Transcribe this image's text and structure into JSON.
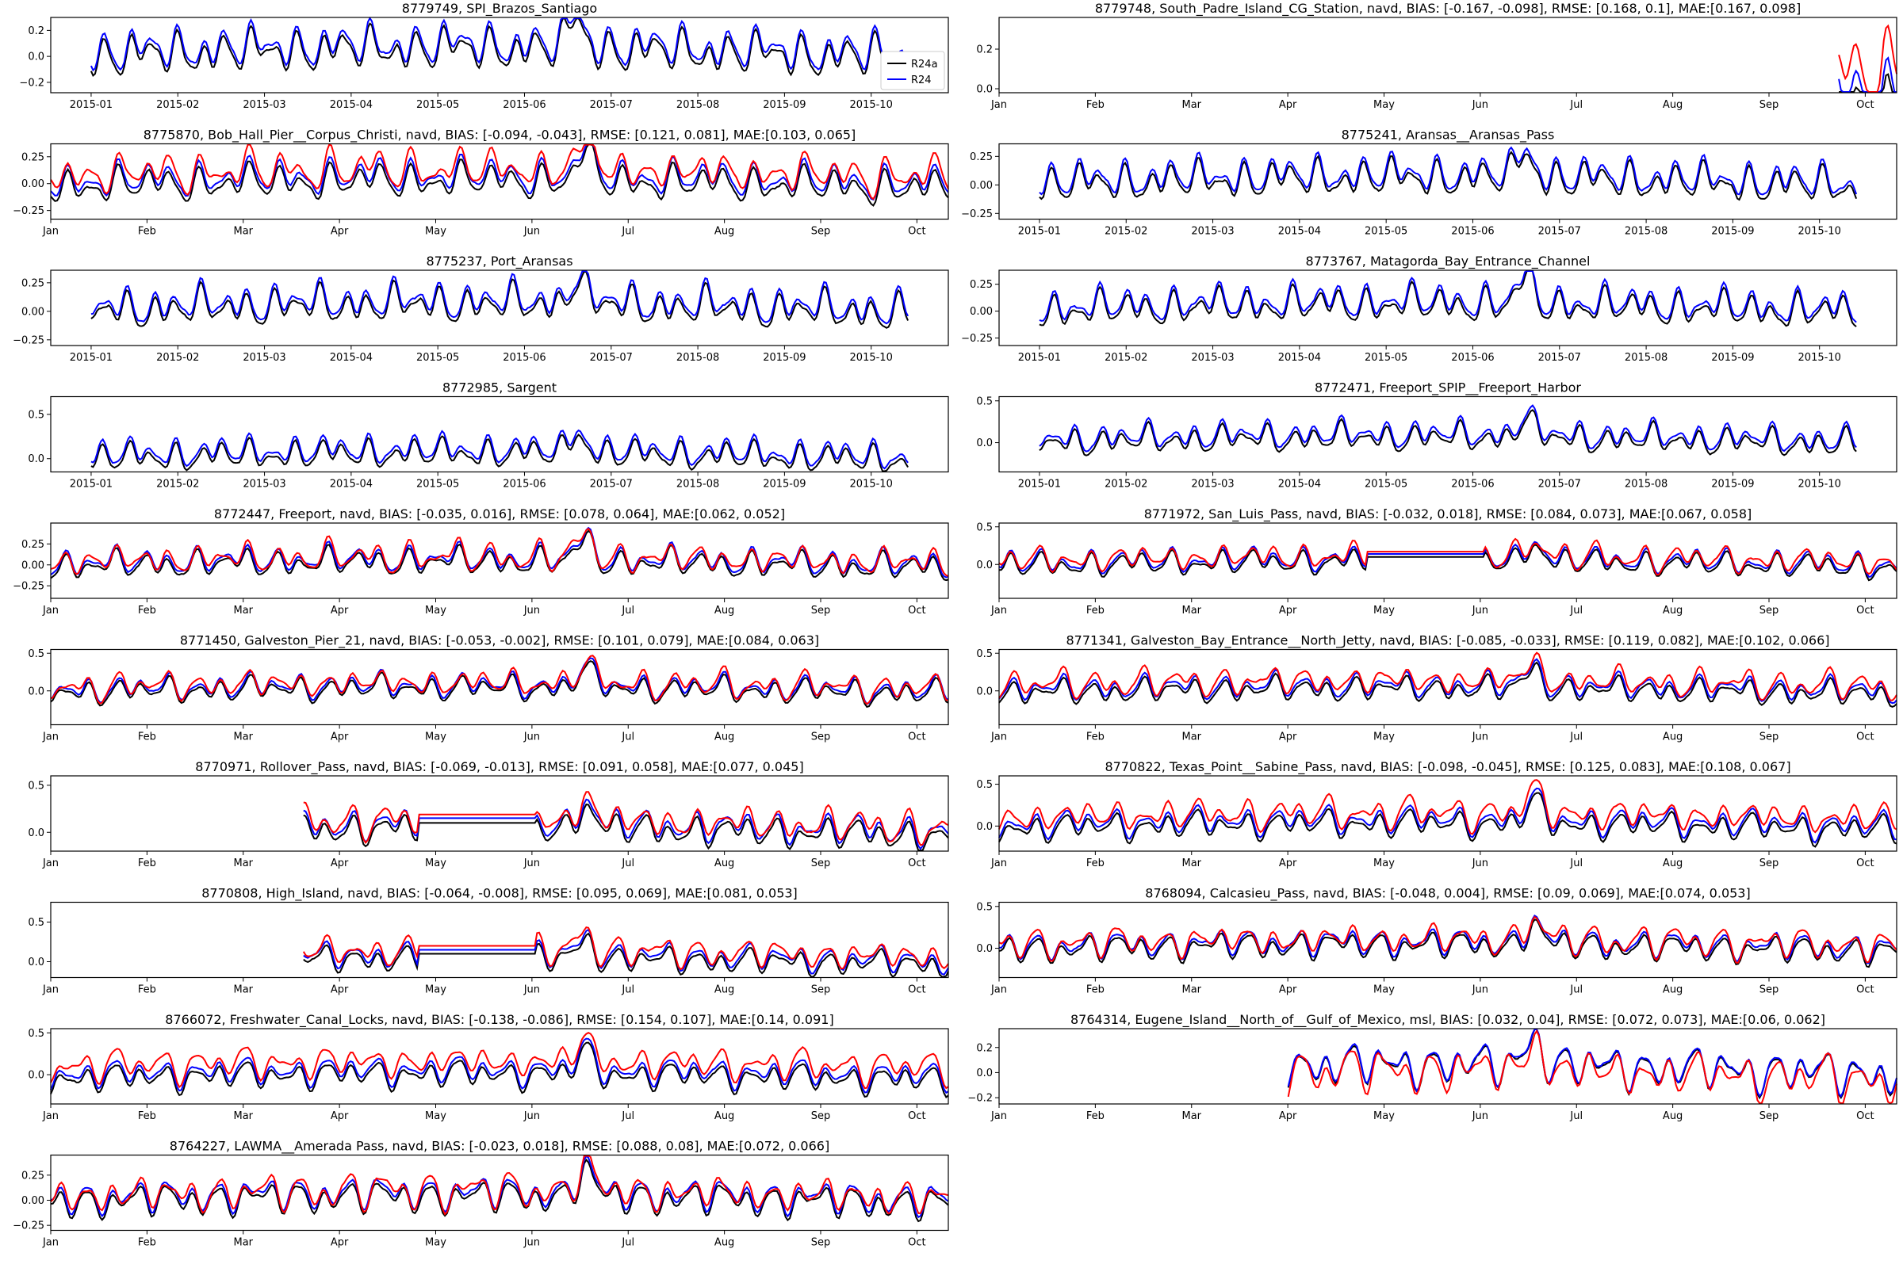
{
  "chart_data": [
    {
      "type": "line",
      "title": "8779749, SPI_Brazos_Santiago",
      "axis": "dates",
      "ylim": [
        -0.28,
        0.3
      ],
      "yticks": [
        0.2,
        0.0,
        -0.2
      ],
      "ytick_labels": [
        "0.2",
        "0.0",
        "−0.2"
      ],
      "xtick_labels": [
        "2015-01",
        "2015-02",
        "2015-03",
        "2015-04",
        "2015-05",
        "2015-06",
        "2015-07",
        "2015-08",
        "2015-09",
        "2015-10"
      ],
      "legend": "lower-right",
      "series": [
        {
          "name": "R24a",
          "color": "#000000",
          "offset": 0.0
        },
        {
          "name": "R24",
          "color": "#0000ff",
          "offset": 0.04
        }
      ]
    },
    {
      "type": "line",
      "title": "8779748, South_Padre_Island_CG_Station, navd, BIAS: [-0.167, -0.098], RMSE: [0.168, 0.1], MAE:[0.167, 0.098]",
      "axis": "months",
      "ylim": [
        -0.02,
        0.36
      ],
      "yticks": [
        0.2,
        0.0
      ],
      "ytick_labels": [
        "0.2",
        "0.0"
      ],
      "xtick_labels": [
        "Jan",
        "Feb",
        "Mar",
        "Apr",
        "May",
        "Jun",
        "Jul",
        "Aug",
        "Sep",
        "Oct"
      ],
      "data_start": 0.935,
      "series": [
        {
          "color": "#000000",
          "offset": -0.08
        },
        {
          "color": "#0000ff",
          "offset": 0.0
        },
        {
          "color": "#ff0000",
          "offset": 0.12
        }
      ]
    },
    {
      "type": "line",
      "title": "8775870, Bob_Hall_Pier__Corpus_Christi, navd, BIAS: [-0.094, -0.043], RMSE: [0.121, 0.081], MAE:[0.103, 0.065]",
      "axis": "months",
      "ylim": [
        -0.33,
        0.37
      ],
      "yticks": [
        0.25,
        0.0,
        -0.25
      ],
      "ytick_labels": [
        "0.25",
        "0.00",
        "−0.25"
      ],
      "xtick_labels": [
        "Jan",
        "Feb",
        "Mar",
        "Apr",
        "May",
        "Jun",
        "Jul",
        "Aug",
        "Sep",
        "Oct"
      ],
      "series": [
        {
          "color": "#000000",
          "offset": -0.03
        },
        {
          "color": "#0000ff",
          "offset": 0.02
        },
        {
          "color": "#ff0000",
          "offset": 0.08
        }
      ]
    },
    {
      "type": "line",
      "title": "8775241, Aransas__Aransas_Pass",
      "axis": "dates",
      "ylim": [
        -0.3,
        0.36
      ],
      "yticks": [
        0.25,
        0.0,
        -0.25
      ],
      "ytick_labels": [
        "0.25",
        "0.00",
        "−0.25"
      ],
      "xtick_labels": [
        "2015-01",
        "2015-02",
        "2015-03",
        "2015-04",
        "2015-05",
        "2015-06",
        "2015-07",
        "2015-08",
        "2015-09",
        "2015-10"
      ],
      "series": [
        {
          "color": "#000000",
          "offset": 0.0
        },
        {
          "color": "#0000ff",
          "offset": 0.04
        }
      ]
    },
    {
      "type": "line",
      "title": "8775237, Port_Aransas",
      "axis": "dates",
      "ylim": [
        -0.3,
        0.36
      ],
      "yticks": [
        0.25,
        0.0,
        -0.25
      ],
      "ytick_labels": [
        "0.25",
        "0.00",
        "−0.25"
      ],
      "xtick_labels": [
        "2015-01",
        "2015-02",
        "2015-03",
        "2015-04",
        "2015-05",
        "2015-06",
        "2015-07",
        "2015-08",
        "2015-09",
        "2015-10"
      ],
      "series": [
        {
          "color": "#000000",
          "offset": 0.0
        },
        {
          "color": "#0000ff",
          "offset": 0.04
        }
      ]
    },
    {
      "type": "line",
      "title": "8773767, Matagorda_Bay_Entrance_Channel",
      "axis": "dates",
      "ylim": [
        -0.32,
        0.38
      ],
      "yticks": [
        0.25,
        0.0,
        -0.25
      ],
      "ytick_labels": [
        "0.25",
        "0.00",
        "−0.25"
      ],
      "xtick_labels": [
        "2015-01",
        "2015-02",
        "2015-03",
        "2015-04",
        "2015-05",
        "2015-06",
        "2015-07",
        "2015-08",
        "2015-09",
        "2015-10"
      ],
      "series": [
        {
          "color": "#000000",
          "offset": 0.0
        },
        {
          "color": "#0000ff",
          "offset": 0.04
        }
      ]
    },
    {
      "type": "line",
      "title": "8772985, Sargent",
      "axis": "dates",
      "ylim": [
        -0.15,
        0.7
      ],
      "yticks": [
        0.5,
        0.0
      ],
      "ytick_labels": [
        "0.5",
        "0.0"
      ],
      "xtick_labels": [
        "2015-01",
        "2015-02",
        "2015-03",
        "2015-04",
        "2015-05",
        "2015-06",
        "2015-07",
        "2015-08",
        "2015-09",
        "2015-10"
      ],
      "series": [
        {
          "color": "#000000",
          "offset": 0.0
        },
        {
          "color": "#0000ff",
          "offset": 0.05
        }
      ]
    },
    {
      "type": "line",
      "title": "8772471, Freeport_SPIP__Freeport_Harbor",
      "axis": "dates",
      "ylim": [
        -0.35,
        0.55
      ],
      "yticks": [
        0.5,
        0.0
      ],
      "ytick_labels": [
        "0.5",
        "0.0"
      ],
      "xtick_labels": [
        "2015-01",
        "2015-02",
        "2015-03",
        "2015-04",
        "2015-05",
        "2015-06",
        "2015-07",
        "2015-08",
        "2015-09",
        "2015-10"
      ],
      "series": [
        {
          "color": "#000000",
          "offset": 0.0
        },
        {
          "color": "#0000ff",
          "offset": 0.05
        }
      ]
    },
    {
      "type": "line",
      "title": "8772447, Freeport, navd, BIAS: [-0.035, 0.016], RMSE: [0.078, 0.064], MAE:[0.062, 0.052]",
      "axis": "months",
      "ylim": [
        -0.4,
        0.5
      ],
      "yticks": [
        0.25,
        0.0,
        -0.25
      ],
      "ytick_labels": [
        "0.25",
        "0.00",
        "−0.25"
      ],
      "xtick_labels": [
        "Jan",
        "Feb",
        "Mar",
        "Apr",
        "May",
        "Jun",
        "Jul",
        "Aug",
        "Sep",
        "Oct"
      ],
      "series": [
        {
          "color": "#000000",
          "offset": -0.02
        },
        {
          "color": "#0000ff",
          "offset": 0.02
        },
        {
          "color": "#ff0000",
          "offset": 0.04
        }
      ]
    },
    {
      "type": "line",
      "title": "8771972, San_Luis_Pass, navd, BIAS: [-0.032, 0.018], RMSE: [0.084, 0.073], MAE:[0.067, 0.058]",
      "axis": "months",
      "ylim": [
        -0.45,
        0.55
      ],
      "yticks": [
        0.5,
        0.0
      ],
      "ytick_labels": [
        "0.5",
        "0.0"
      ],
      "xtick_labels": [
        "Jan",
        "Feb",
        "Mar",
        "Apr",
        "May",
        "Jun",
        "Jul",
        "Aug",
        "Sep",
        "Oct"
      ],
      "gap": [
        0.41,
        0.54
      ],
      "series": [
        {
          "color": "#000000",
          "offset": -0.02
        },
        {
          "color": "#0000ff",
          "offset": 0.02
        },
        {
          "color": "#ff0000",
          "offset": 0.05
        }
      ]
    },
    {
      "type": "line",
      "title": "8771450, Galveston_Pier_21, navd, BIAS: [-0.053, -0.002], RMSE: [0.101, 0.079], MAE:[0.084, 0.063]",
      "axis": "months",
      "ylim": [
        -0.45,
        0.55
      ],
      "yticks": [
        0.5,
        0.0
      ],
      "ytick_labels": [
        "0.5",
        "0.0"
      ],
      "xtick_labels": [
        "Jan",
        "Feb",
        "Mar",
        "Apr",
        "May",
        "Jun",
        "Jul",
        "Aug",
        "Sep",
        "Oct"
      ],
      "series": [
        {
          "color": "#000000",
          "offset": -0.02
        },
        {
          "color": "#0000ff",
          "offset": 0.02
        },
        {
          "color": "#ff0000",
          "offset": 0.05
        }
      ]
    },
    {
      "type": "line",
      "title": "8771341, Galveston_Bay_Entrance__North_Jetty, navd, BIAS: [-0.085, -0.033], RMSE: [0.119, 0.082], MAE:[0.102, 0.066]",
      "axis": "months",
      "ylim": [
        -0.45,
        0.55
      ],
      "yticks": [
        0.5,
        0.0
      ],
      "ytick_labels": [
        "0.5",
        "0.0"
      ],
      "xtick_labels": [
        "Jan",
        "Feb",
        "Mar",
        "Apr",
        "May",
        "Jun",
        "Jul",
        "Aug",
        "Sep",
        "Oct"
      ],
      "series": [
        {
          "color": "#000000",
          "offset": -0.03
        },
        {
          "color": "#0000ff",
          "offset": 0.02
        },
        {
          "color": "#ff0000",
          "offset": 0.08
        }
      ]
    },
    {
      "type": "line",
      "title": "8770971, Rollover_Pass, navd, BIAS: [-0.069, -0.013], RMSE: [0.091, 0.058], MAE:[0.077, 0.045]",
      "axis": "months",
      "ylim": [
        -0.2,
        0.6
      ],
      "yticks": [
        0.5,
        0.0
      ],
      "ytick_labels": [
        "0.5",
        "0.0"
      ],
      "xtick_labels": [
        "Jan",
        "Feb",
        "Mar",
        "Apr",
        "May",
        "Jun",
        "Jul",
        "Aug",
        "Sep",
        "Oct"
      ],
      "data_start": 0.28,
      "gap": [
        0.41,
        0.54
      ],
      "series": [
        {
          "color": "#000000",
          "offset": -0.02
        },
        {
          "color": "#0000ff",
          "offset": 0.03
        },
        {
          "color": "#ff0000",
          "offset": 0.07
        }
      ]
    },
    {
      "type": "line",
      "title": "8770822, Texas_Point__Sabine_Pass, navd, BIAS: [-0.098, -0.045], RMSE: [0.125, 0.083], MAE:[0.108, 0.067]",
      "axis": "months",
      "ylim": [
        -0.3,
        0.6
      ],
      "yticks": [
        0.5,
        0.0
      ],
      "ytick_labels": [
        "0.5",
        "0.0"
      ],
      "xtick_labels": [
        "Jan",
        "Feb",
        "Mar",
        "Apr",
        "May",
        "Jun",
        "Jul",
        "Aug",
        "Sep",
        "Oct"
      ],
      "series": [
        {
          "color": "#000000",
          "offset": -0.03
        },
        {
          "color": "#0000ff",
          "offset": 0.02
        },
        {
          "color": "#ff0000",
          "offset": 0.1
        }
      ]
    },
    {
      "type": "line",
      "title": "8770808, High_Island, navd, BIAS: [-0.064, -0.008], RMSE: [0.095, 0.069], MAE:[0.081, 0.053]",
      "axis": "months",
      "ylim": [
        -0.2,
        0.75
      ],
      "yticks": [
        0.5,
        0.0
      ],
      "ytick_labels": [
        "0.5",
        "0.0"
      ],
      "xtick_labels": [
        "Jan",
        "Feb",
        "Mar",
        "Apr",
        "May",
        "Jun",
        "Jul",
        "Aug",
        "Sep",
        "Oct"
      ],
      "data_start": 0.28,
      "gap": [
        0.41,
        0.54
      ],
      "series": [
        {
          "color": "#000000",
          "offset": -0.02
        },
        {
          "color": "#0000ff",
          "offset": 0.03
        },
        {
          "color": "#ff0000",
          "offset": 0.08
        }
      ]
    },
    {
      "type": "line",
      "title": "8768094, Calcasieu_Pass, navd, BIAS: [-0.048, 0.004], RMSE: [0.09, 0.069], MAE:[0.074, 0.053]",
      "axis": "months",
      "ylim": [
        -0.35,
        0.55
      ],
      "yticks": [
        0.5,
        0.0
      ],
      "ytick_labels": [
        "0.5",
        "0.0"
      ],
      "xtick_labels": [
        "Jan",
        "Feb",
        "Mar",
        "Apr",
        "May",
        "Jun",
        "Jul",
        "Aug",
        "Sep",
        "Oct"
      ],
      "series": [
        {
          "color": "#000000",
          "offset": -0.02
        },
        {
          "color": "#0000ff",
          "offset": 0.02
        },
        {
          "color": "#ff0000",
          "offset": 0.05
        }
      ]
    },
    {
      "type": "line",
      "title": "8766072, Freshwater_Canal_Locks, navd, BIAS: [-0.138, -0.086], RMSE: [0.154, 0.107], MAE:[0.14, 0.091]",
      "axis": "months",
      "ylim": [
        -0.35,
        0.55
      ],
      "yticks": [
        0.5,
        0.0
      ],
      "ytick_labels": [
        "0.5",
        "0.0"
      ],
      "xtick_labels": [
        "Jan",
        "Feb",
        "Mar",
        "Apr",
        "May",
        "Jun",
        "Jul",
        "Aug",
        "Sep",
        "Oct"
      ],
      "series": [
        {
          "color": "#000000",
          "offset": -0.05
        },
        {
          "color": "#0000ff",
          "offset": 0.0
        },
        {
          "color": "#ff0000",
          "offset": 0.1
        }
      ]
    },
    {
      "type": "line",
      "title": "8764314, Eugene_Island__North_of__Gulf_of_Mexico, msl, BIAS: [0.032, 0.04], RMSE: [0.072, 0.073], MAE:[0.06, 0.062]",
      "axis": "months",
      "ylim": [
        -0.25,
        0.35
      ],
      "yticks": [
        0.2,
        0.0,
        -0.2
      ],
      "ytick_labels": [
        "0.2",
        "0.0",
        "−0.2"
      ],
      "xtick_labels": [
        "Jan",
        "Feb",
        "Mar",
        "Apr",
        "May",
        "Jun",
        "Jul",
        "Aug",
        "Sep",
        "Oct"
      ],
      "data_start": 0.32,
      "series": [
        {
          "color": "#000000",
          "offset": 0.0
        },
        {
          "color": "#0000ff",
          "offset": 0.01
        },
        {
          "color": "#ff0000",
          "offset": -0.04
        }
      ]
    },
    {
      "type": "line",
      "title": "8764227, LAWMA__Amerada Pass, navd, BIAS: [-0.023, 0.018], RMSE: [0.088, 0.08], MAE:[0.072, 0.066]",
      "axis": "months",
      "ylim": [
        -0.3,
        0.45
      ],
      "yticks": [
        0.25,
        0.0,
        -0.25
      ],
      "ytick_labels": [
        "0.25",
        "0.00",
        "−0.25"
      ],
      "xtick_labels": [
        "Jan",
        "Feb",
        "Mar",
        "Apr",
        "May",
        "Jun",
        "Jul",
        "Aug",
        "Sep",
        "Oct"
      ],
      "series": [
        {
          "color": "#000000",
          "offset": -0.02
        },
        {
          "color": "#0000ff",
          "offset": 0.02
        },
        {
          "color": "#ff0000",
          "offset": 0.04
        }
      ]
    }
  ]
}
